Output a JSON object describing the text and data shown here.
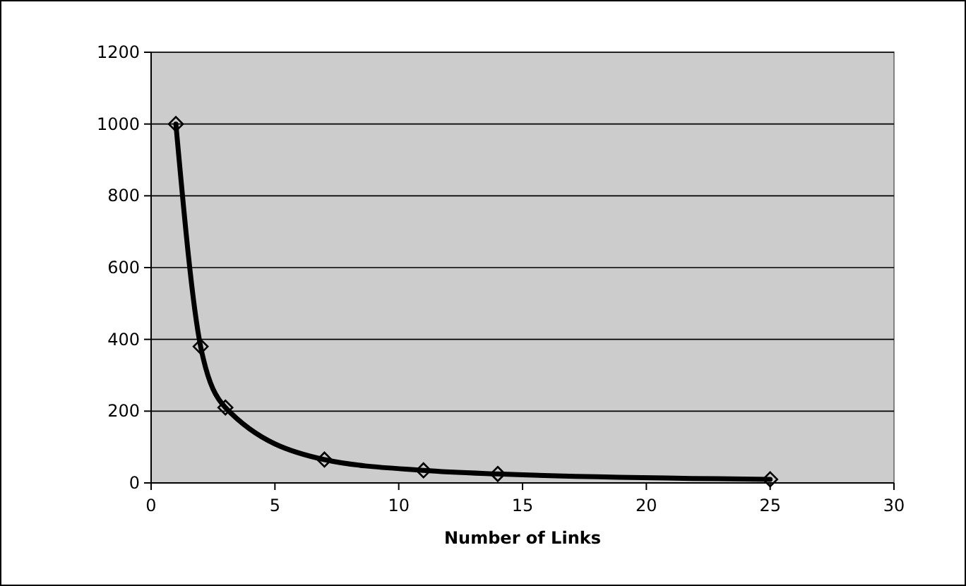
{
  "chart_data": {
    "type": "line",
    "xlabel": "Number of Links",
    "x": [
      1,
      2,
      3,
      7,
      11,
      14,
      25
    ],
    "series": [
      {
        "color": "#000000",
        "values": [
          1000,
          380,
          210,
          65,
          35,
          25,
          10
        ]
      }
    ],
    "xlim": [
      0,
      30
    ],
    "xticks": [
      0,
      5,
      10,
      15,
      20,
      25,
      30
    ],
    "ylim": [
      0,
      1200
    ],
    "yticks": [
      0,
      200,
      400,
      600,
      800,
      1000,
      1200
    ],
    "grid": "y",
    "marker": "diamond",
    "line_style": "solid"
  }
}
